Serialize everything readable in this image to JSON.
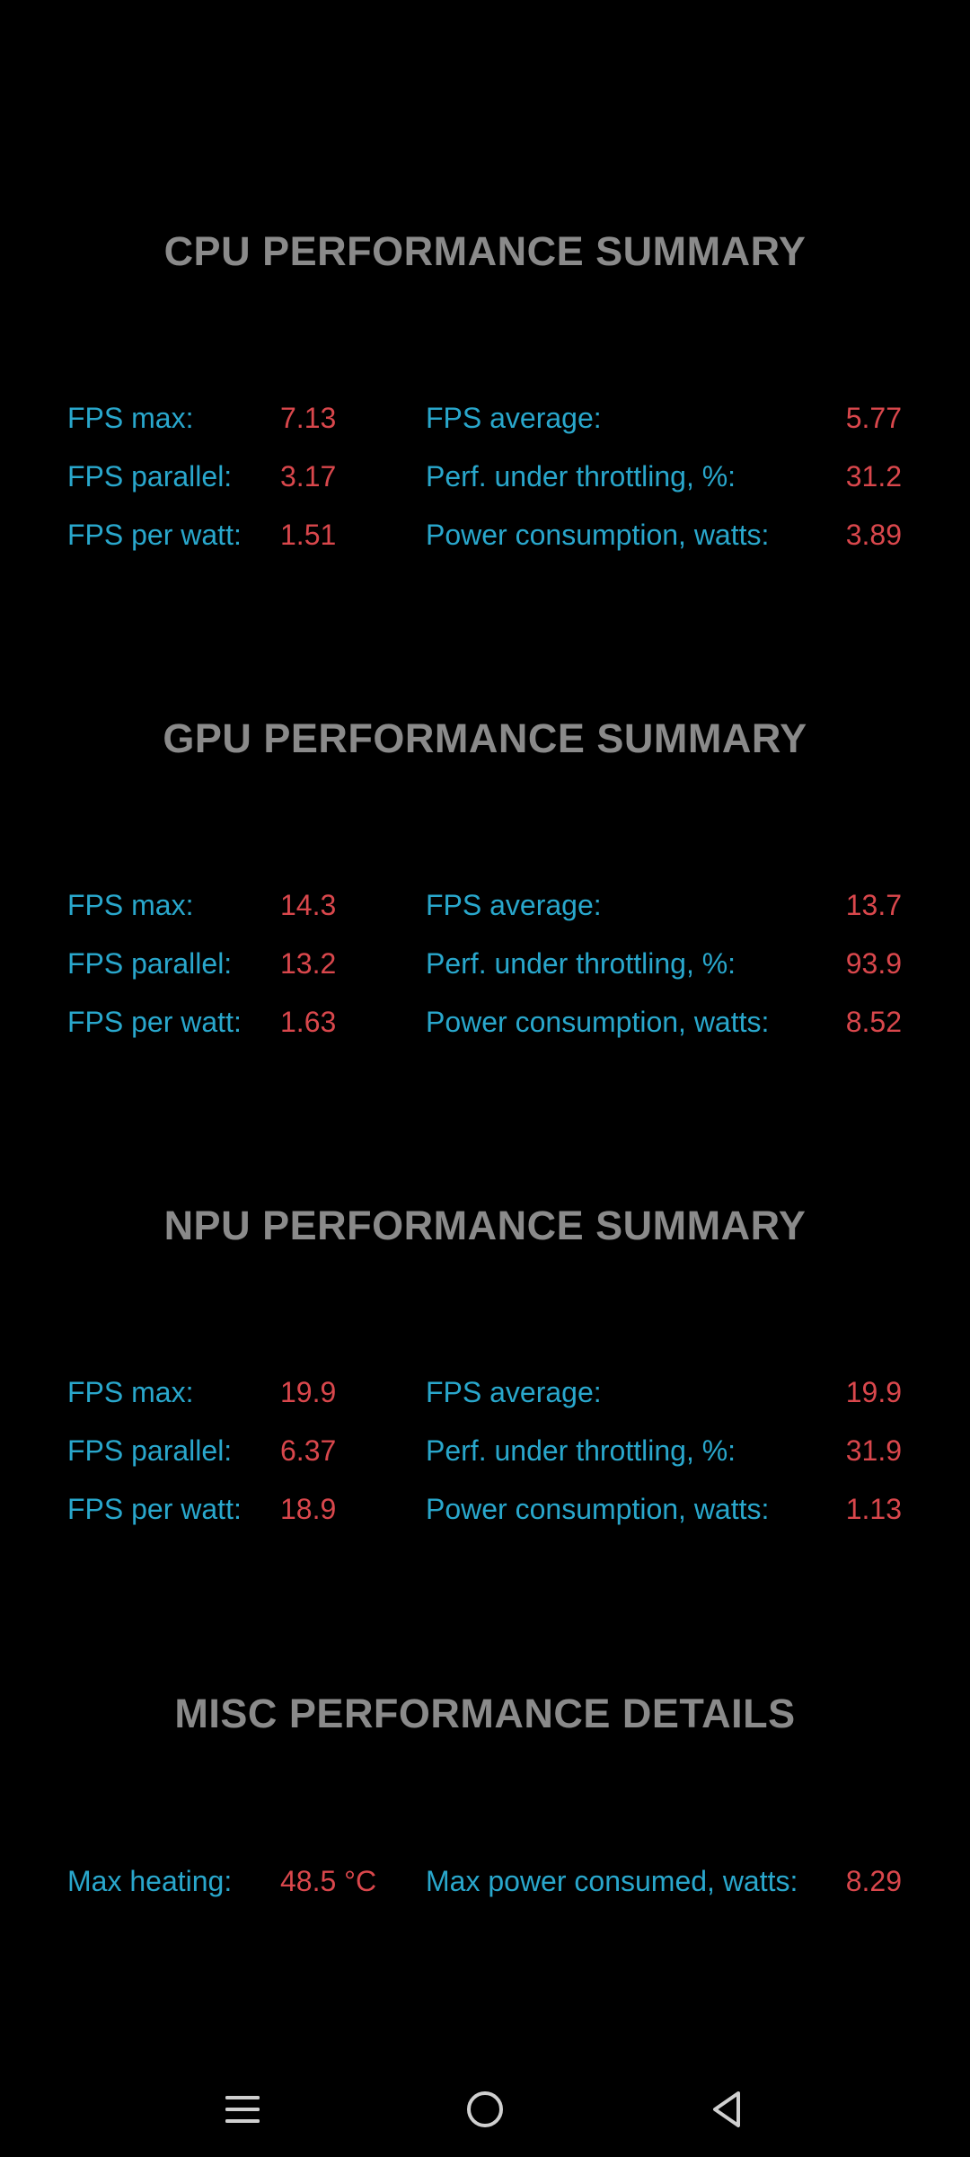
{
  "sections": [
    {
      "title": "CPU PERFORMANCE SUMMARY",
      "rows": [
        {
          "label1": "FPS max:",
          "value1": "7.13",
          "label2": "FPS average:",
          "value2": "5.77"
        },
        {
          "label1": "FPS parallel:",
          "value1": "3.17",
          "label2": "Perf. under throttling, %:",
          "value2": "31.2"
        },
        {
          "label1": "FPS per watt:",
          "value1": "1.51",
          "label2": "Power consumption, watts:",
          "value2": "3.89"
        }
      ]
    },
    {
      "title": "GPU PERFORMANCE SUMMARY",
      "rows": [
        {
          "label1": "FPS max:",
          "value1": "14.3",
          "label2": "FPS average:",
          "value2": "13.7"
        },
        {
          "label1": "FPS parallel:",
          "value1": "13.2",
          "label2": "Perf. under throttling, %:",
          "value2": "93.9"
        },
        {
          "label1": "FPS per watt:",
          "value1": "1.63",
          "label2": "Power consumption, watts:",
          "value2": "8.52"
        }
      ]
    },
    {
      "title": "NPU PERFORMANCE SUMMARY",
      "rows": [
        {
          "label1": "FPS max:",
          "value1": "19.9",
          "label2": "FPS average:",
          "value2": "19.9"
        },
        {
          "label1": "FPS parallel:",
          "value1": "6.37",
          "label2": "Perf. under throttling, %:",
          "value2": "31.9"
        },
        {
          "label1": "FPS per watt:",
          "value1": "18.9",
          "label2": "Power consumption, watts:",
          "value2": "1.13"
        }
      ]
    },
    {
      "title": "MISC PERFORMANCE DETAILS",
      "rows": [
        {
          "label1": "Max heating:",
          "value1": "48.5 °C",
          "label2": "Max power consumed, watts:",
          "value2": "8.29"
        }
      ]
    }
  ],
  "navbar": {
    "menu_icon": "menu-icon",
    "home_icon": "home-circle-icon",
    "back_icon": "back-triangle-icon"
  },
  "colors": {
    "background": "#000000",
    "title": "#8a8a8a",
    "label": "#29a7cc",
    "value": "#d9474c",
    "nav_icon": "#cfcfcf"
  }
}
